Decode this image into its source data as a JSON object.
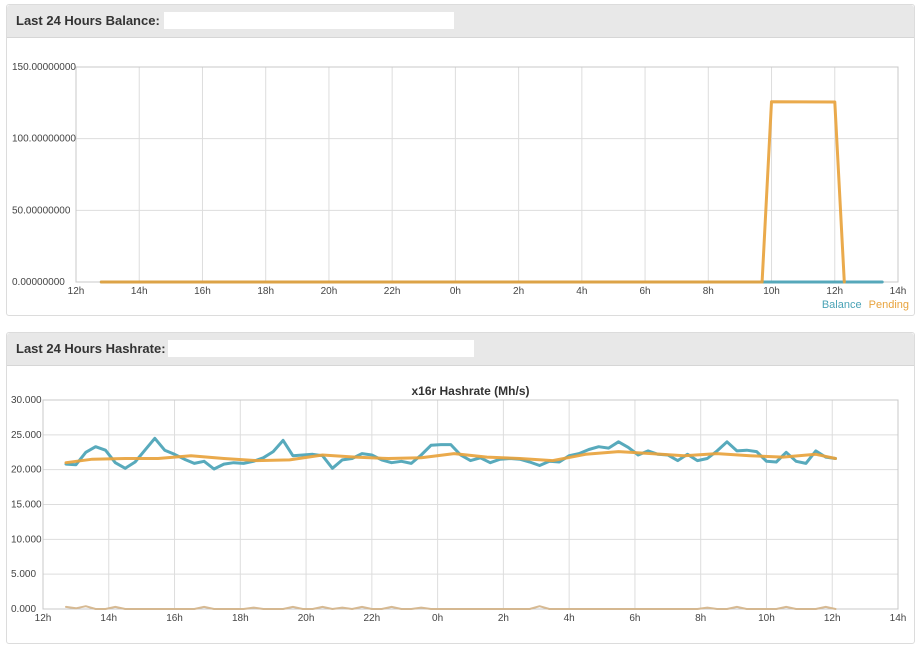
{
  "balance_panel": {
    "title": "Last 24 Hours Balance:"
  },
  "hashrate_panel": {
    "title": "Last 24 Hours Hashrate:"
  },
  "chart_data": [
    {
      "type": "line",
      "title": "",
      "x_tick_labels": [
        "12h",
        "14h",
        "16h",
        "18h",
        "20h",
        "22h",
        "0h",
        "2h",
        "4h",
        "6h",
        "8h",
        "10h",
        "12h",
        "14h"
      ],
      "y_tick_labels": [
        "0.00000000",
        "50.00000000",
        "100.00000000",
        "150.00000000"
      ],
      "ylim": [
        0,
        150
      ],
      "xlim": [
        0,
        26
      ],
      "grid": true,
      "legend": {
        "position": "bottom-right",
        "entries": [
          "Balance",
          "Pending"
        ]
      },
      "series": [
        {
          "name": "Balance",
          "color": "#4aa3b6",
          "x": [
            0.8,
            25.5
          ],
          "y": [
            0,
            0
          ]
        },
        {
          "name": "Pending",
          "color": "#e8a33d",
          "x": [
            0.8,
            21.7,
            22.0,
            24.0,
            24.3
          ],
          "y": [
            0,
            0,
            125.8,
            125.6,
            0
          ]
        }
      ]
    },
    {
      "type": "line",
      "title": "x16r Hashrate (Mh/s)",
      "x_tick_labels": [
        "12h",
        "14h",
        "16h",
        "18h",
        "20h",
        "22h",
        "0h",
        "2h",
        "4h",
        "6h",
        "8h",
        "10h",
        "12h",
        "14h"
      ],
      "y_tick_labels": [
        "0.000",
        "5.000",
        "10.000",
        "15.000",
        "20.000",
        "25.000",
        "30.000"
      ],
      "ylim": [
        0,
        30
      ],
      "xlim": [
        0,
        26
      ],
      "grid": true,
      "series": [
        {
          "name": "",
          "color": "#4aa3b6",
          "x": [
            0.7,
            1.0,
            1.3,
            1.6,
            1.9,
            2.2,
            2.5,
            2.8,
            3.1,
            3.4,
            3.7,
            4.0,
            4.3,
            4.6,
            4.9,
            5.2,
            5.5,
            5.8,
            6.1,
            6.4,
            6.7,
            7.0,
            7.3,
            7.6,
            7.9,
            8.2,
            8.5,
            8.8,
            9.1,
            9.4,
            9.7,
            10.0,
            10.3,
            10.6,
            10.9,
            11.2,
            11.5,
            11.8,
            12.1,
            12.4,
            12.7,
            13.0,
            13.3,
            13.6,
            13.9,
            14.2,
            14.5,
            14.8,
            15.1,
            15.4,
            15.7,
            16.0,
            16.3,
            16.6,
            16.9,
            17.2,
            17.5,
            17.8,
            18.1,
            18.4,
            18.7,
            19.0,
            19.3,
            19.6,
            19.9,
            20.2,
            20.5,
            20.8,
            21.1,
            21.4,
            21.7,
            22.0,
            22.3,
            22.6,
            22.9,
            23.2,
            23.5,
            23.8,
            24.1
          ],
          "y": [
            20.8,
            20.7,
            22.5,
            23.3,
            22.8,
            21.0,
            20.2,
            21.1,
            22.8,
            24.5,
            22.8,
            22.2,
            21.5,
            20.9,
            21.2,
            20.1,
            20.8,
            21.0,
            20.9,
            21.2,
            21.7,
            22.6,
            24.2,
            22.0,
            22.1,
            22.2,
            22.0,
            20.2,
            21.4,
            21.6,
            22.3,
            22.1,
            21.4,
            21.0,
            21.2,
            20.9,
            22.1,
            23.5,
            23.6,
            23.6,
            22.1,
            21.3,
            21.7,
            21.0,
            21.5,
            21.6,
            21.5,
            21.1,
            20.6,
            21.2,
            21.1,
            22.0,
            22.3,
            22.9,
            23.3,
            23.1,
            24.0,
            23.2,
            22.1,
            22.7,
            22.2,
            22.1,
            21.3,
            22.2,
            21.3,
            21.6,
            22.7,
            24.0,
            22.7,
            22.8,
            22.6,
            21.2,
            21.1,
            22.5,
            21.2,
            20.9,
            22.7,
            21.8,
            21.6
          ]
        },
        {
          "name": "",
          "color": "#e8a33d",
          "x": [
            0.7,
            1.5,
            2.5,
            3.5,
            4.5,
            5.5,
            6.5,
            7.5,
            8.5,
            9.5,
            10.5,
            11.5,
            12.5,
            13.5,
            14.5,
            15.5,
            16.5,
            17.5,
            18.5,
            19.5,
            20.5,
            21.5,
            22.5,
            23.5,
            24.1
          ],
          "y": [
            21.0,
            21.5,
            21.6,
            21.6,
            22.0,
            21.6,
            21.3,
            21.4,
            22.1,
            21.8,
            21.6,
            21.7,
            22.3,
            21.8,
            21.6,
            21.3,
            22.2,
            22.6,
            22.3,
            22.0,
            22.3,
            22.0,
            21.8,
            22.2,
            21.6
          ]
        },
        {
          "name": "",
          "color": "#d4b48a",
          "x": [
            0.7,
            1.0,
            1.3,
            1.6,
            1.9,
            2.2,
            2.5,
            2.8,
            3.1,
            3.4,
            3.7,
            4.0,
            4.3,
            4.6,
            4.9,
            5.2,
            5.5,
            5.8,
            6.1,
            6.4,
            6.7,
            7.0,
            7.3,
            7.6,
            7.9,
            8.2,
            8.5,
            8.8,
            9.1,
            9.4,
            9.7,
            10.0,
            10.3,
            10.6,
            10.9,
            11.2,
            11.5,
            11.8,
            12.1,
            12.4,
            12.7,
            13.0,
            13.3,
            13.6,
            13.9,
            14.2,
            14.5,
            14.8,
            15.1,
            15.4,
            15.7,
            16.0,
            16.3,
            16.6,
            16.9,
            17.2,
            17.5,
            17.8,
            18.1,
            18.4,
            18.7,
            19.0,
            19.3,
            19.6,
            19.9,
            20.2,
            20.5,
            20.8,
            21.1,
            21.4,
            21.7,
            22.0,
            22.3,
            22.6,
            22.9,
            23.2,
            23.5,
            23.8,
            24.1
          ],
          "y": [
            0.3,
            0.1,
            0.4,
            0.0,
            0.0,
            0.3,
            0.0,
            0.0,
            0.0,
            0.0,
            0.0,
            0.0,
            0.0,
            0.0,
            0.3,
            0.0,
            0.0,
            0.0,
            0.0,
            0.2,
            0.0,
            0.0,
            0.0,
            0.3,
            0.0,
            0.0,
            0.3,
            0.0,
            0.2,
            0.0,
            0.3,
            0.0,
            0.0,
            0.3,
            0.0,
            0.0,
            0.2,
            0.0,
            0.0,
            0.0,
            0.0,
            0.0,
            0.0,
            0.0,
            0.0,
            0.0,
            0.0,
            0.0,
            0.4,
            0.0,
            0.0,
            0.0,
            0.0,
            0.0,
            0.0,
            0.0,
            0.0,
            0.0,
            0.0,
            0.0,
            0.0,
            0.0,
            0.0,
            0.0,
            0.0,
            0.2,
            0.0,
            0.0,
            0.3,
            0.0,
            0.0,
            0.0,
            0.0,
            0.3,
            0.0,
            0.0,
            0.0,
            0.3,
            0.0
          ]
        }
      ]
    }
  ]
}
